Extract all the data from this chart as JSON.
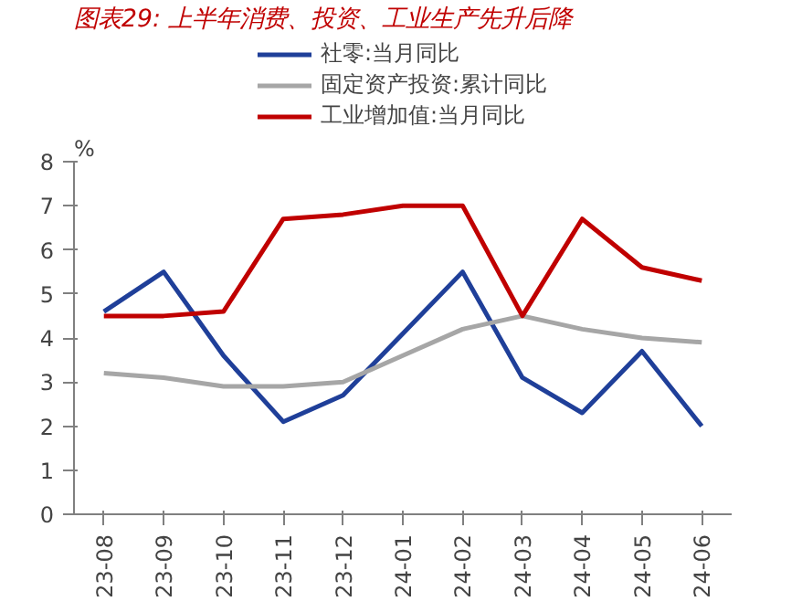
{
  "chart_data": {
    "type": "line",
    "title": "图表29: 上半年消费、投资、工业生产先升后降",
    "ylabel": "%",
    "categories": [
      "23-08",
      "23-09",
      "23-10",
      "23-11",
      "23-12",
      "24-01",
      "24-02",
      "24-03",
      "24-04",
      "24-05",
      "24-06"
    ],
    "series": [
      {
        "name": "社零:当月同比",
        "color": "#1f3f99",
        "values": [
          4.6,
          5.5,
          3.6,
          2.1,
          2.7,
          4.1,
          5.5,
          3.1,
          2.3,
          3.7,
          2.0
        ]
      },
      {
        "name": "固定资产投资:累计同比",
        "color": "#a6a6a6",
        "values": [
          3.2,
          3.1,
          2.9,
          2.9,
          3.0,
          3.6,
          4.2,
          4.5,
          4.2,
          4.0,
          3.9
        ]
      },
      {
        "name": "工业增加值:当月同比",
        "color": "#c00000",
        "values": [
          4.5,
          4.5,
          4.6,
          6.7,
          6.8,
          7.0,
          7.0,
          4.5,
          6.7,
          5.6,
          5.3
        ]
      }
    ],
    "ylim": [
      0,
      8
    ],
    "yticks": [
      0,
      1,
      2,
      3,
      4,
      5,
      6,
      7,
      8
    ],
    "grid": false,
    "legend": "top",
    "marker": "none",
    "line_style": "solid"
  }
}
